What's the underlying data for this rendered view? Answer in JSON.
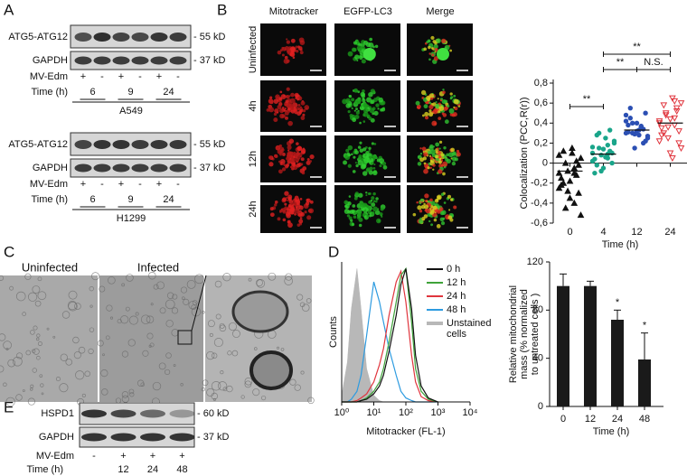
{
  "panel_labels": [
    "A",
    "B",
    "C",
    "D",
    "E"
  ],
  "panel_a": {
    "blots": [
      {
        "bands": [
          "ATG5-ATG12",
          "GAPDH"
        ],
        "markers": [
          "- 55 kD",
          "- 37 kD"
        ],
        "treatment_label": "MV-Edm",
        "treatment": [
          "+",
          "-",
          "+",
          "-",
          "+",
          "-"
        ],
        "time_label": "Time (h)",
        "times": [
          "6",
          "9",
          "24"
        ],
        "cell_line": "A549"
      },
      {
        "bands": [
          "ATG5-ATG12",
          "GAPDH"
        ],
        "markers": [
          "- 55 kD",
          "- 37 kD"
        ],
        "treatment_label": "MV-Edm",
        "treatment": [
          "+",
          "-",
          "+",
          "-",
          "+",
          "-"
        ],
        "time_label": "Time (h)",
        "times": [
          "6",
          "9",
          "24"
        ],
        "cell_line": "H1299"
      }
    ]
  },
  "panel_b": {
    "columns": [
      "Mitotracker",
      "EGFP-LC3",
      "Merge"
    ],
    "rows": [
      "Uninfected",
      "4h",
      "12h",
      "24h"
    ]
  },
  "panel_c": {
    "labels": [
      "Uninfected",
      "Infected"
    ]
  },
  "panel_e": {
    "bands": [
      "HSPD1",
      "GAPDH"
    ],
    "markers": [
      "- 60 kD",
      "- 37 kD"
    ],
    "treatment_label": "MV-Edm",
    "treatment": [
      "-",
      "+",
      "+",
      "+"
    ],
    "time_label": "Time (h)",
    "times": [
      null,
      "12",
      "24",
      "48"
    ]
  },
  "chart_data": [
    {
      "type": "scatter",
      "xlabel": "Time (h)",
      "ylabel": "Colocalization (PCC,R(r))",
      "categories": [
        "0",
        "4",
        "12",
        "24"
      ],
      "series": [
        {
          "color": "#111111",
          "marker": "triangle-up",
          "values": [
            -0.1,
            -0.05,
            0,
            0.05,
            0.1,
            -0.2,
            -0.3,
            -0.35,
            -0.15,
            -0.12,
            -0.08,
            -0.25,
            -0.4,
            -0.45,
            -0.52,
            0.15,
            0.12,
            -0.02,
            -0.18,
            -0.22,
            0.02,
            -0.28,
            0.08,
            -0.1
          ]
        },
        {
          "color": "#1aa58a",
          "marker": "circle",
          "values": [
            0.1,
            0.05,
            0.15,
            0.2,
            0.25,
            0.28,
            0,
            -0.05,
            -0.1,
            0.12,
            0.08,
            0.02,
            0.18,
            0.3,
            0.22,
            0.06,
            -0.02,
            0.1,
            0.14,
            0.04,
            0.33,
            -0.08,
            0.16,
            0.09
          ]
        },
        {
          "color": "#2b4fb3",
          "marker": "circle",
          "values": [
            0.3,
            0.35,
            0.4,
            0.25,
            0.28,
            0.45,
            0.5,
            0.32,
            0.38,
            0.2,
            0.15,
            0.42,
            0.36,
            0.3,
            0.27,
            0.33,
            0.55,
            0.22,
            0.4,
            0.31,
            0.34,
            0.29,
            0.48,
            0.37
          ]
        },
        {
          "color": "#e0353d",
          "marker": "triangle-down",
          "values": [
            0.4,
            0.45,
            0.5,
            0.6,
            0.65,
            0.3,
            0.2,
            0.1,
            0.35,
            0.55,
            0.25,
            0.42,
            0.38,
            0.48,
            0.15,
            0.05,
            0.58,
            0.32,
            0.44,
            0.28,
            0.52,
            0.36,
            0.22,
            0.62
          ]
        }
      ],
      "means": [
        -0.08,
        0.09,
        0.33,
        0.4
      ],
      "comparisons": [
        {
          "groups": [
            0,
            1
          ],
          "label": "**"
        },
        {
          "groups": [
            1,
            3
          ],
          "label": "**"
        },
        {
          "groups": [
            1,
            2
          ],
          "label": "**"
        },
        {
          "groups": [
            2,
            3
          ],
          "label": "N.S."
        }
      ],
      "ylim": [
        -0.6,
        0.8
      ],
      "yticks": [
        {
          "value": -0.6,
          "label": "-0,6"
        },
        {
          "value": -0.4,
          "label": "-0,4"
        },
        {
          "value": -0.2,
          "label": "-0,2"
        },
        0,
        {
          "value": 0.2,
          "label": "0,2"
        },
        {
          "value": 0.4,
          "label": "0,4"
        },
        {
          "value": 0.6,
          "label": "0,6"
        },
        {
          "value": 0.8,
          "label": "0,8"
        }
      ]
    },
    {
      "type": "line",
      "xlabel": "Mitotracker (FL-1)",
      "ylabel": "Counts",
      "xlog": true,
      "x": [
        1,
        1.5,
        2,
        3,
        4,
        6,
        10,
        15,
        20,
        30,
        50,
        70,
        100,
        150,
        200,
        300,
        500,
        1000
      ],
      "series": [
        {
          "name": "0 h",
          "color": "#111111",
          "values": [
            0,
            0,
            0,
            0,
            1,
            2,
            6,
            12,
            20,
            38,
            65,
            88,
            100,
            70,
            35,
            12,
            3,
            0
          ]
        },
        {
          "name": "12 h",
          "color": "#3fa33a",
          "values": [
            0,
            0,
            0,
            0,
            1,
            3,
            8,
            15,
            25,
            45,
            75,
            95,
            100,
            60,
            25,
            8,
            2,
            0
          ]
        },
        {
          "name": "24 h",
          "color": "#e0353d",
          "values": [
            0,
            0,
            0,
            1,
            3,
            6,
            15,
            28,
            40,
            65,
            90,
            98,
            75,
            35,
            15,
            4,
            1,
            0
          ]
        },
        {
          "name": "48 h",
          "color": "#2d9be0",
          "values": [
            0,
            0,
            2,
            8,
            20,
            50,
            90,
            75,
            60,
            40,
            20,
            8,
            3,
            1,
            0,
            0,
            0,
            0
          ]
        },
        {
          "name": "Unstained cells",
          "color": "#b8b8b8",
          "filled": true,
          "values": [
            5,
            30,
            70,
            100,
            70,
            25,
            5,
            1,
            0,
            0,
            0,
            0,
            0,
            0,
            0,
            0,
            0,
            0
          ]
        }
      ],
      "xlim": [
        1,
        10000
      ],
      "ylim": [
        0,
        105
      ],
      "xticks": [
        {
          "value": 1,
          "label": "10⁰"
        },
        {
          "value": 10,
          "label": "10¹"
        },
        {
          "value": 100,
          "label": "10²"
        },
        {
          "value": 1000,
          "label": "10³"
        },
        {
          "value": 10000,
          "label": "10⁴"
        }
      ]
    },
    {
      "type": "bar",
      "xlabel": "Time (h)",
      "ylabel": [
        "Relative mitochondrial",
        "mass (% normalized",
        "to untreated cells )"
      ],
      "categories": [
        "0",
        "12",
        "24",
        "48"
      ],
      "values": [
        100,
        100,
        72,
        39
      ],
      "errors": [
        10,
        4,
        8,
        22
      ],
      "annotations": [
        null,
        null,
        "*",
        "*"
      ],
      "color": "#1a1a1a",
      "ylim": [
        0,
        120
      ],
      "yticks": [
        0,
        40,
        80,
        120
      ]
    }
  ]
}
